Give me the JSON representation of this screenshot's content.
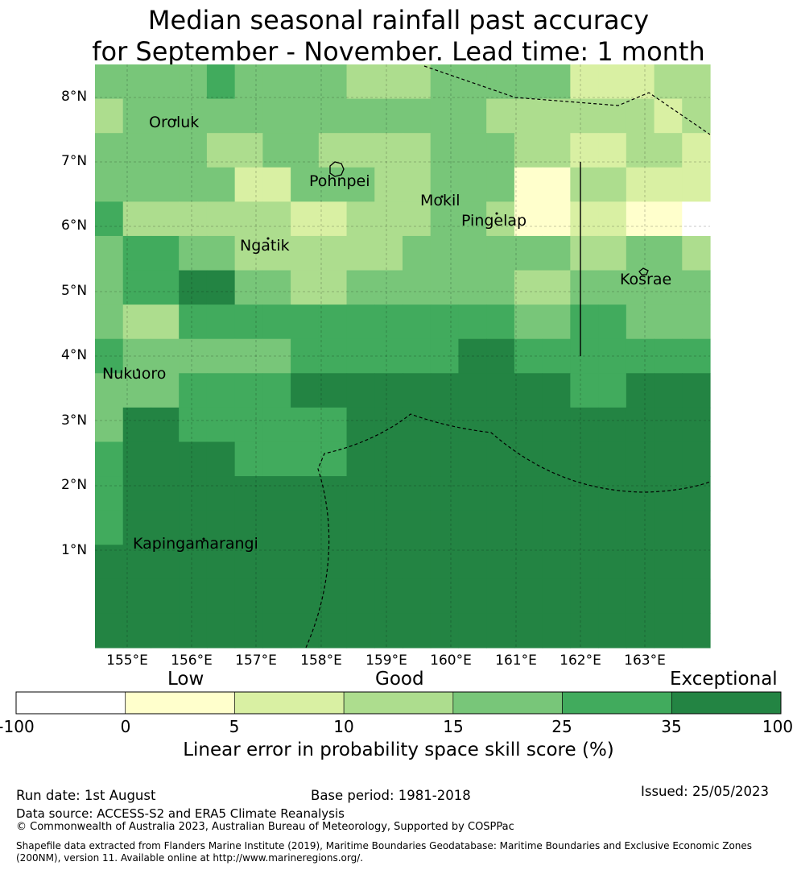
{
  "title": {
    "line1": "Median seasonal rainfall past accuracy",
    "line2": "for September - November. Lead time: 1 month"
  },
  "map": {
    "lat_labels": [
      "8°N",
      "7°N",
      "6°N",
      "5°N",
      "4°N",
      "3°N",
      "2°N",
      "1°N"
    ],
    "lon_labels": [
      "155°E",
      "156°E",
      "157°E",
      "158°E",
      "159°E",
      "160°E",
      "161°E",
      "162°E",
      "163°E"
    ],
    "places": [
      {
        "name": "Oroluk"
      },
      {
        "name": "Pohnpei"
      },
      {
        "name": "Mokil"
      },
      {
        "name": "Pingelap"
      },
      {
        "name": "Ngatik"
      },
      {
        "name": "Kosrae"
      },
      {
        "name": "Nukuoro"
      },
      {
        "name": "Kapingamarangi"
      }
    ],
    "skill_grid": [
      [
        4,
        4,
        4,
        4,
        5,
        4,
        4,
        4,
        4,
        3,
        3,
        3,
        4,
        4,
        4,
        4,
        4,
        2,
        2,
        2,
        3,
        3
      ],
      [
        3,
        4,
        4,
        4,
        4,
        4,
        4,
        4,
        4,
        4,
        4,
        4,
        4,
        4,
        3,
        3,
        3,
        3,
        3,
        3,
        2,
        3
      ],
      [
        4,
        4,
        4,
        4,
        3,
        3,
        4,
        4,
        3,
        3,
        3,
        3,
        4,
        4,
        4,
        3,
        3,
        2,
        2,
        3,
        3,
        2
      ],
      [
        4,
        4,
        4,
        4,
        4,
        2,
        2,
        4,
        4,
        4,
        3,
        3,
        4,
        4,
        4,
        1,
        1,
        3,
        3,
        2,
        2,
        2
      ],
      [
        5,
        3,
        3,
        3,
        3,
        3,
        3,
        2,
        2,
        3,
        3,
        3,
        4,
        4,
        3,
        1,
        1,
        2,
        2,
        1,
        1,
        0
      ],
      [
        4,
        5,
        5,
        4,
        4,
        3,
        3,
        3,
        3,
        3,
        3,
        4,
        4,
        4,
        4,
        4,
        4,
        3,
        3,
        4,
        4,
        3
      ],
      [
        4,
        5,
        5,
        6,
        6,
        4,
        4,
        3,
        3,
        4,
        4,
        4,
        4,
        4,
        4,
        3,
        3,
        4,
        4,
        4,
        4,
        4
      ],
      [
        4,
        3,
        3,
        5,
        5,
        5,
        5,
        5,
        5,
        5,
        5,
        5,
        5,
        5,
        5,
        4,
        4,
        5,
        5,
        4,
        4,
        4
      ],
      [
        5,
        4,
        4,
        4,
        4,
        4,
        4,
        5,
        5,
        5,
        5,
        5,
        5,
        6,
        6,
        5,
        5,
        5,
        5,
        5,
        5,
        5
      ],
      [
        4,
        4,
        4,
        5,
        5,
        5,
        5,
        6,
        6,
        6,
        6,
        6,
        6,
        6,
        6,
        6,
        6,
        5,
        5,
        6,
        6,
        6
      ],
      [
        4,
        6,
        6,
        5,
        5,
        5,
        5,
        5,
        5,
        6,
        6,
        6,
        6,
        6,
        6,
        6,
        6,
        6,
        6,
        6,
        6,
        6
      ],
      [
        5,
        6,
        6,
        6,
        6,
        5,
        5,
        5,
        5,
        6,
        6,
        6,
        6,
        6,
        6,
        6,
        6,
        6,
        6,
        6,
        6,
        6
      ],
      [
        5,
        6,
        6,
        6,
        6,
        6,
        6,
        6,
        6,
        6,
        6,
        6,
        6,
        6,
        6,
        6,
        6,
        6,
        6,
        6,
        6,
        6
      ],
      [
        5,
        6,
        6,
        6,
        6,
        6,
        6,
        6,
        6,
        6,
        6,
        6,
        6,
        6,
        6,
        6,
        6,
        6,
        6,
        6,
        6,
        6
      ],
      [
        6,
        6,
        6,
        6,
        6,
        6,
        6,
        6,
        6,
        6,
        6,
        6,
        6,
        6,
        6,
        6,
        6,
        6,
        6,
        6,
        6,
        6
      ],
      [
        6,
        6,
        6,
        6,
        6,
        6,
        6,
        6,
        6,
        6,
        6,
        6,
        6,
        6,
        6,
        6,
        6,
        6,
        6,
        6,
        6,
        6
      ],
      [
        6,
        6,
        6,
        6,
        6,
        6,
        6,
        6,
        6,
        6,
        6,
        6,
        6,
        6,
        6,
        6,
        6,
        6,
        6,
        6,
        6,
        6
      ]
    ]
  },
  "colorbar": {
    "categories": [
      "Low",
      "Good",
      "Exceptional"
    ],
    "ticks": [
      "-100",
      "0",
      "5",
      "10",
      "15",
      "25",
      "35",
      "100"
    ],
    "colors": [
      "#ffffff",
      "#ffffcc",
      "#d9f0a3",
      "#addd8e",
      "#78c679",
      "#41ab5d",
      "#238443"
    ],
    "label": "Linear error in probability space skill score (%)"
  },
  "footer": {
    "run_date": "Run date: 1st August",
    "base_period": "Base period: 1981-2018",
    "issued": "Issued: 25/05/2023",
    "data_source": "Data source: ACCESS-S2 and ERA5 Climate Reanalysis",
    "copyright": "© Commonwealth of Australia 2023, Australian Bureau of Meteorology, Supported by COSPPac",
    "shapefile_line1": "Shapefile data extracted from Flanders Marine Institute (2019), Maritime Boundaries Geodatabase: Maritime Boundaries and Exclusive Economic Zones",
    "shapefile_line2": "(200NM), version 11. Available online at http://www.marineregions.org/."
  }
}
